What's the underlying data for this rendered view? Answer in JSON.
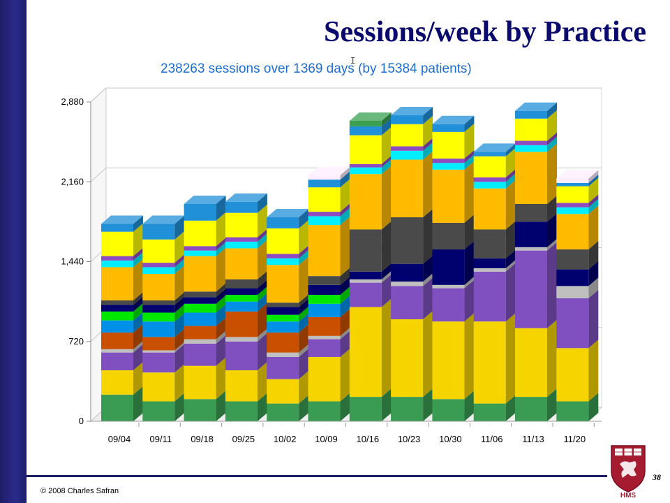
{
  "slide": {
    "title": "Sessions/week by Practice",
    "copyright": "© 2008 Charles Safran",
    "slide_number": "38",
    "logo_text": "HMS",
    "cursor_glyph": "I"
  },
  "chart_data": {
    "type": "bar",
    "stacked": true,
    "title": "238263 sessions over 1369 days (by 15384 patients)",
    "xlabel": "",
    "ylabel": "",
    "ylim": [
      0,
      2880
    ],
    "yticks": [
      "0",
      "720",
      "1,440",
      "2,160",
      "2,880"
    ],
    "grid": true,
    "categories": [
      "09/04",
      "09/11",
      "09/18",
      "09/25",
      "10/02",
      "10/09",
      "10/16",
      "10/23",
      "10/30",
      "11/06",
      "11/13",
      "11/20"
    ],
    "series": [
      {
        "color": "#3a9c52",
        "values": [
          240,
          180,
          200,
          180,
          160,
          180,
          220,
          220,
          200,
          160,
          220,
          180
        ]
      },
      {
        "color": "#f5d400",
        "values": [
          220,
          260,
          300,
          280,
          220,
          400,
          810,
          700,
          700,
          740,
          620,
          480
        ]
      },
      {
        "color": "#8050c0",
        "values": [
          160,
          180,
          200,
          260,
          200,
          160,
          220,
          300,
          300,
          450,
          700,
          450
        ]
      },
      {
        "color": "#bfbfbf",
        "values": [
          30,
          20,
          40,
          40,
          40,
          30,
          30,
          40,
          30,
          30,
          30,
          110
        ]
      },
      {
        "color": "#c85000",
        "values": [
          150,
          120,
          120,
          230,
          180,
          170,
          0,
          0,
          0,
          0,
          0,
          0
        ]
      },
      {
        "color": "#0090e8",
        "values": [
          110,
          140,
          120,
          90,
          100,
          120,
          0,
          0,
          0,
          0,
          0,
          0
        ]
      },
      {
        "color": "#00e800",
        "values": [
          80,
          80,
          80,
          60,
          60,
          80,
          0,
          0,
          0,
          0,
          0,
          0
        ]
      },
      {
        "color": "#00006e",
        "values": [
          60,
          70,
          60,
          60,
          70,
          90,
          70,
          160,
          320,
          90,
          230,
          150
        ]
      },
      {
        "color": "#4a4a4a",
        "values": [
          40,
          40,
          50,
          80,
          40,
          80,
          380,
          420,
          240,
          260,
          160,
          180
        ]
      },
      {
        "color": "#ffbb00",
        "values": [
          300,
          240,
          320,
          280,
          340,
          460,
          500,
          520,
          480,
          370,
          470,
          320
        ]
      },
      {
        "color": "#00eeff",
        "values": [
          60,
          60,
          50,
          60,
          60,
          80,
          60,
          80,
          60,
          60,
          60,
          60
        ]
      },
      {
        "color": "#8e4cc0",
        "values": [
          40,
          40,
          40,
          40,
          40,
          40,
          30,
          40,
          40,
          40,
          40,
          40
        ]
      },
      {
        "color": "#ffff00",
        "values": [
          220,
          210,
          230,
          220,
          230,
          220,
          260,
          200,
          240,
          190,
          200,
          150
        ]
      },
      {
        "color": "#2090d8",
        "values": [
          70,
          140,
          150,
          100,
          100,
          70,
          80,
          80,
          70,
          40,
          70,
          30
        ]
      },
      {
        "color": "#3aa050",
        "values": [
          0,
          0,
          0,
          0,
          0,
          0,
          50,
          0,
          0,
          0,
          0,
          0
        ]
      },
      {
        "color": "#ffeeff",
        "values": [
          0,
          0,
          0,
          0,
          0,
          40,
          0,
          0,
          0,
          0,
          0,
          40
        ]
      }
    ]
  }
}
